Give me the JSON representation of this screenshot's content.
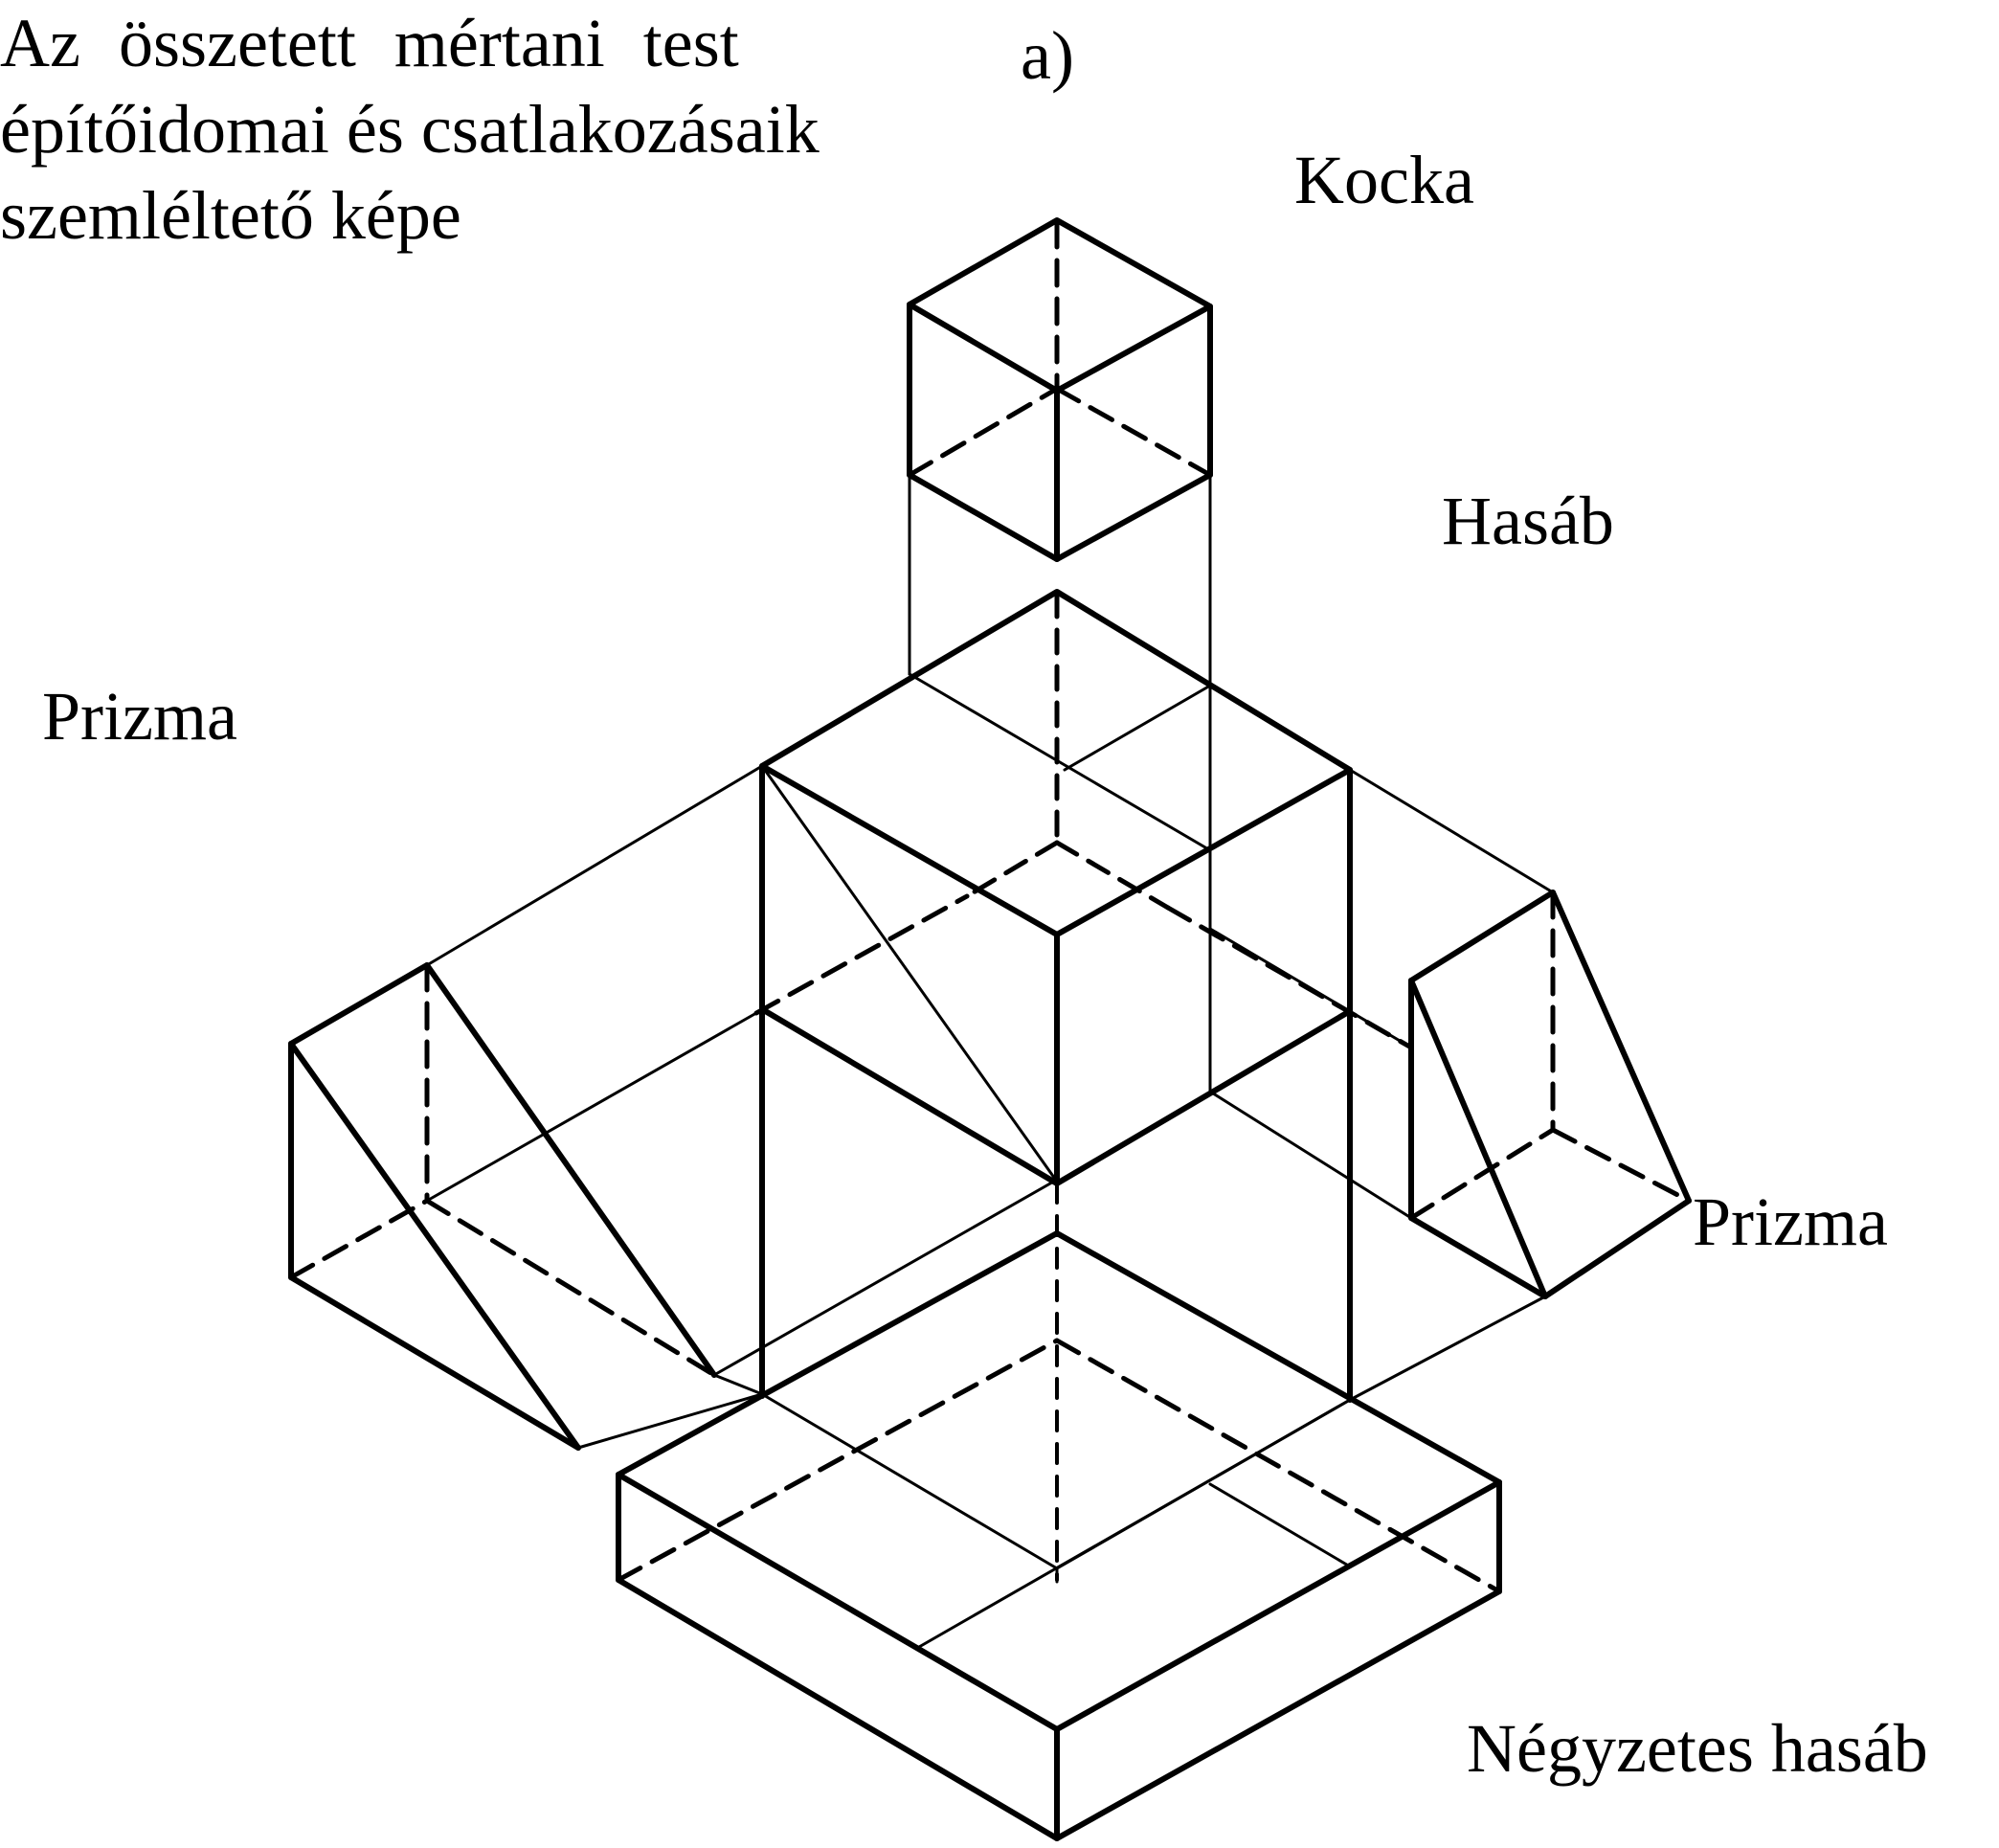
{
  "caption": {
    "line1": "Az összetett mértani test",
    "line2": "építőidomai és csatlakozásaik",
    "line3": "szemléltető képe"
  },
  "variant_label": "a)",
  "labels": {
    "kocka": "Kocka",
    "hasab": "Hasáb",
    "prizma_left": "Prizma",
    "prizma_right": "Prizma",
    "negyzetes_hasab": "Négyzetes hasáb"
  }
}
